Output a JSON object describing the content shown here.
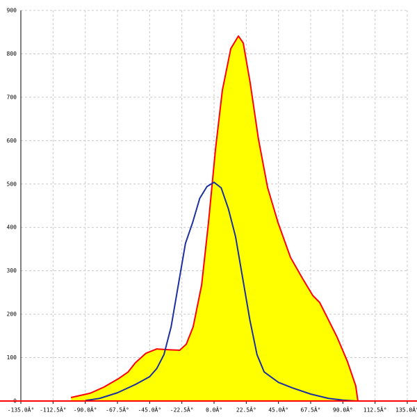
{
  "chart_data": {
    "type": "area",
    "xlim": [
      -135,
      135
    ],
    "ylim": [
      0,
      900
    ],
    "xticks": [
      {
        "value": -135,
        "label": "-135.0Â°"
      },
      {
        "value": -112.5,
        "label": "-112.5Â°"
      },
      {
        "value": -90,
        "label": "-90.0Â°"
      },
      {
        "value": -67.5,
        "label": "-67.5Â°"
      },
      {
        "value": -45,
        "label": "-45.0Â°"
      },
      {
        "value": -22.5,
        "label": "-22.5Â°"
      },
      {
        "value": 0,
        "label": "0.0Â°"
      },
      {
        "value": 22.5,
        "label": "22.5Â°"
      },
      {
        "value": 45,
        "label": "45.0Â°"
      },
      {
        "value": 67.5,
        "label": "67.5Â°"
      },
      {
        "value": 90,
        "label": "90.0Â°"
      },
      {
        "value": 112.5,
        "label": "112.5Â°"
      },
      {
        "value": 135,
        "label": "135.0Â°"
      }
    ],
    "yticks": [
      0,
      100,
      200,
      300,
      400,
      500,
      600,
      700,
      800,
      900
    ],
    "grid": true,
    "series": [
      {
        "color": "#ff0000",
        "fill": "#ffff00",
        "x": [
          -100,
          -86.5,
          -77,
          -67,
          -60,
          -55,
          -47.6,
          -40,
          -30.6,
          -24,
          -19.4,
          -14.6,
          -8.7,
          -3.9,
          1,
          5.8,
          11.7,
          17,
          20.4,
          25.3,
          31,
          37.4,
          44.7,
          53.4,
          61.7,
          69,
          73.8,
          78.7,
          86,
          93.2,
          99,
          100.5
        ],
        "values": [
          8,
          18,
          32,
          51,
          67,
          88,
          110,
          120,
          118,
          117,
          131,
          171,
          267,
          411,
          580,
          716,
          812,
          841,
          825,
          732,
          604,
          492,
          411,
          331,
          283,
          243,
          227,
          195,
          147,
          91,
          35,
          0
        ]
      },
      {
        "color": "#1a2fa0",
        "x": [
          -90,
          -80,
          -67.5,
          -55,
          -45,
          -40,
          -35,
          -30,
          -25,
          -20,
          -15,
          -10,
          -5,
          0,
          5,
          10,
          15,
          20,
          25,
          30,
          35,
          45,
          55,
          67.5,
          80,
          90,
          100
        ],
        "values": [
          1,
          6,
          19,
          38,
          56,
          75,
          107,
          171,
          267,
          363,
          411,
          467,
          494,
          504,
          491,
          443,
          379,
          283,
          187,
          107,
          67,
          43,
          30,
          16,
          6,
          2,
          0
        ]
      }
    ]
  }
}
